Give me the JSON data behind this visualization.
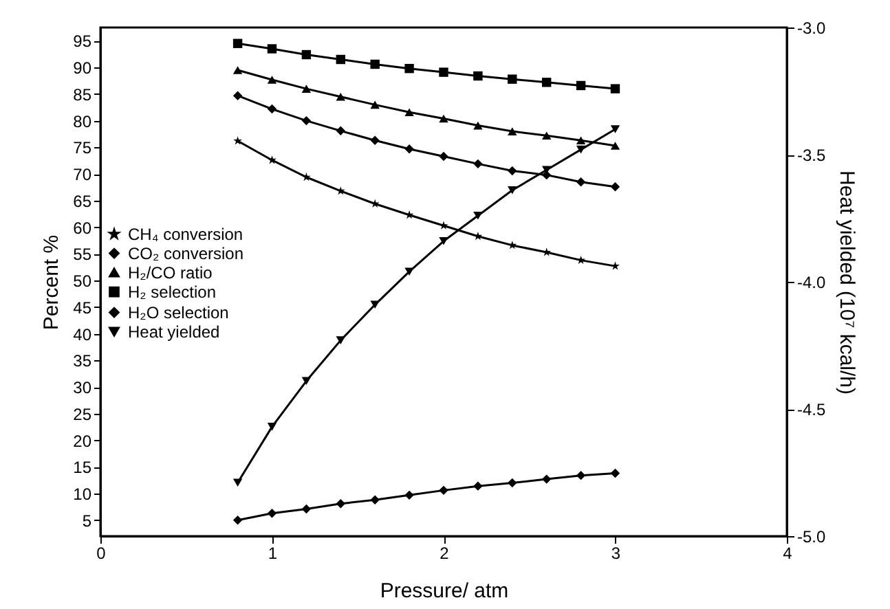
{
  "chart_data": {
    "type": "line",
    "xlabel": "Pressure/ atm",
    "ylabel": "Percent %",
    "y2label": "Heat yielded (10⁷ kcal/h)",
    "x": [
      0.8,
      1.0,
      1.2,
      1.4,
      1.6,
      1.8,
      2.0,
      2.2,
      2.4,
      2.6,
      2.8,
      3.0
    ],
    "xlim": [
      0,
      4
    ],
    "xticks": [
      0,
      1,
      2,
      3,
      4
    ],
    "ylim": [
      2,
      97.5
    ],
    "yticks": [
      5,
      10,
      15,
      20,
      25,
      30,
      35,
      40,
      45,
      50,
      55,
      60,
      65,
      70,
      75,
      80,
      85,
      90,
      95
    ],
    "y2lim": [
      -5,
      -3
    ],
    "y2ticks": [
      {
        "value": -5,
        "label": "-5.0"
      },
      {
        "value": -4.5,
        "label": "-4.5"
      },
      {
        "value": -4,
        "label": "-4.0"
      },
      {
        "value": -3.5,
        "label": "-3.5"
      },
      {
        "value": -3,
        "label": "-3.0"
      }
    ],
    "legend": "left",
    "grid": false,
    "series": [
      {
        "name": "CH₄ conversion",
        "color": "#000000",
        "marker": "star",
        "values": [
          76.2,
          72.6,
          69.4,
          66.8,
          64.4,
          62.3,
          60.3,
          58.3,
          56.6,
          55.3,
          53.8,
          52.7
        ]
      },
      {
        "name": "CO₂ conversion",
        "color": "#000000",
        "marker": "diamond",
        "values": [
          84.7,
          82.2,
          80.0,
          78.1,
          76.3,
          74.7,
          73.3,
          71.9,
          70.6,
          69.8,
          68.5,
          67.6
        ]
      },
      {
        "name": "H₂/CO ratio",
        "color": "#000000",
        "marker": "triangle",
        "values": [
          89.5,
          87.7,
          86.0,
          84.5,
          83.0,
          81.6,
          80.4,
          79.1,
          78.0,
          77.2,
          76.3,
          75.3
        ]
      },
      {
        "name": "H₂ selection",
        "color": "#000000",
        "marker": "square",
        "values": [
          94.5,
          93.5,
          92.4,
          91.5,
          90.6,
          89.8,
          89.1,
          88.4,
          87.8,
          87.2,
          86.6,
          86.0
        ]
      },
      {
        "name": "H₂O selection",
        "color": "#000000",
        "marker": "diamond",
        "values": [
          5.0,
          6.3,
          7.1,
          8.1,
          8.8,
          9.7,
          10.6,
          11.4,
          12.0,
          12.7,
          13.4,
          13.8
        ]
      },
      {
        "name": "Heat yielded",
        "color": "#000000",
        "marker": "triangle-down",
        "axis": "y2",
        "values": [
          -4.79,
          -4.57,
          -4.39,
          -4.23,
          -4.09,
          -3.96,
          -3.84,
          -3.74,
          -3.64,
          -3.56,
          -3.48,
          -3.4
        ]
      }
    ]
  }
}
